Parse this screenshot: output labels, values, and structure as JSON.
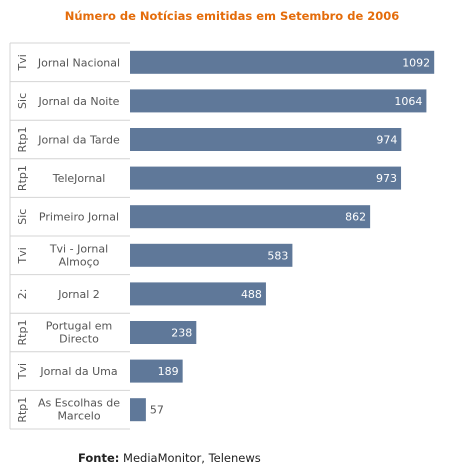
{
  "chart_data": {
    "type": "bar",
    "orientation": "horizontal",
    "title": "Número de Notícias emitidas em Setembro de 2006",
    "categories": [
      "Jornal Nacional",
      "Jornal da Noite",
      "Jornal da Tarde",
      "TeleJornal",
      "Primeiro Jornal",
      "Tvi - Jornal Almoço",
      "Jornal 2",
      "Portugal em Directo",
      "Jornal da Uma",
      "As Escolhas de Marcelo"
    ],
    "groups": [
      "Tvi",
      "Sic",
      "Rtp1",
      "Rtp1",
      "Sic",
      "Tvi",
      "2:",
      "Rtp1",
      "Tvi",
      "Rtp1"
    ],
    "values": [
      1092,
      1064,
      974,
      973,
      862,
      583,
      488,
      238,
      189,
      57
    ],
    "xlim": [
      0,
      1120
    ],
    "grid": false,
    "legend": "none",
    "colors": {
      "bar": "#5f7899",
      "title": "#e46c0a",
      "label_inside": "#ffffff",
      "label_outside": "#555555",
      "separator": "#d4d4d4"
    }
  },
  "source": {
    "label": "Fonte:",
    "text": "MediaMonitor, Telenews"
  }
}
